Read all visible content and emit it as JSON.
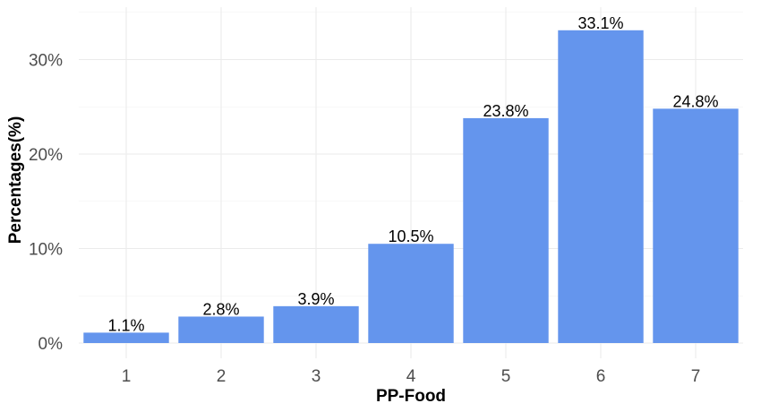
{
  "chart_data": {
    "type": "bar",
    "categories": [
      "1",
      "2",
      "3",
      "4",
      "5",
      "6",
      "7"
    ],
    "values": [
      1.1,
      2.8,
      3.9,
      10.5,
      23.8,
      33.1,
      24.8
    ],
    "data_labels": [
      "1.1%",
      "2.8%",
      "3.9%",
      "10.5%",
      "23.8%",
      "33.1%",
      "24.8%"
    ],
    "xlabel": "PP-Food",
    "ylabel": "Percentages(%)",
    "ylim": [
      0,
      35
    ],
    "yticks": [
      0,
      10,
      20,
      30
    ],
    "ytick_labels": [
      "0%",
      "10%",
      "20%",
      "30%"
    ],
    "grid": true,
    "bar_color": "#6495ED"
  }
}
